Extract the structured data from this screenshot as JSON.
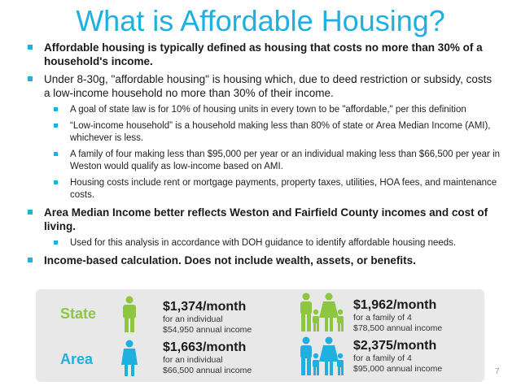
{
  "title": "What is Affordable Housing?",
  "bullets": {
    "b1": "Affordable housing is typically defined as housing that costs no more than 30% of a household's income.",
    "b2": "Under 8-30g, \"affordable housing\" is housing which, due to deed restriction or subsidy, costs a low-income household no more than 30% of their income.",
    "b2_sub": [
      "A goal of state law is for 10% of housing units in every town to be \"affordable,\" per this definition",
      "“Low-income household” is a household making less than 80% of state or Area Median Income (AMI), whichever is less.",
      "A family of four making less than $95,000 per year or an individual making less than $66,500 per year in Weston would qualify as low-income based on AMI.",
      "Housing costs include rent or mortgage payments, property taxes, utilities, HOA fees, and maintenance costs."
    ],
    "b3": "Area Median Income better reflects Weston and Fairfield County incomes and cost of living.",
    "b3_sub": "Used for this analysis in accordance with DOH guidance to identify affordable housing needs.",
    "b4": "Income-based calculation. Does not include wealth, assets, or benefits."
  },
  "panel": {
    "state": {
      "label": "State",
      "color": "#8dc63f",
      "individual": {
        "amount": "$1,374/month",
        "line1": "for an individual",
        "line2": "$54,950 annual income"
      },
      "family": {
        "amount": "$1,962/month",
        "line1": "for a family of 4",
        "line2": "$78,500 annual income"
      }
    },
    "area": {
      "label": "Area",
      "color": "#1fb0e0",
      "individual": {
        "amount": "$1,663/month",
        "line1": "for an individual",
        "line2": "$66,500 annual income"
      },
      "family": {
        "amount": "$2,375/month",
        "line1": "for a family of 4",
        "line2": "$95,000 annual income"
      }
    },
    "icons": {
      "individual": "person-icon",
      "family": "family-icon"
    }
  },
  "page_number": "7",
  "colors": {
    "accent": "#1fb0e0",
    "state_green": "#8dc63f",
    "area_blue": "#1fb0e0",
    "panel_bg": "#e8e8e8"
  }
}
